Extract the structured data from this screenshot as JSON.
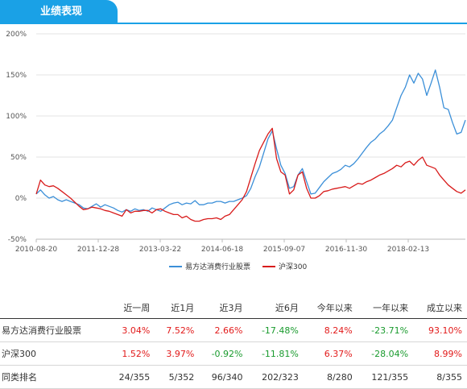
{
  "header": {
    "tab_label": "业绩表现"
  },
  "chart_data": {
    "type": "line",
    "x_ticks": [
      "2010-08-20",
      "2011-12-28",
      "2013-03-22",
      "2014-06-18",
      "2015-09-07",
      "2016-11-30",
      "2018-02-13"
    ],
    "y_ticks": [
      "200%",
      "150%",
      "100%",
      "50%",
      "0%",
      "-50%"
    ],
    "ylim": [
      -50,
      200
    ],
    "x_unit": "index",
    "xlim": [
      0,
      100
    ],
    "grid": true,
    "legend_position": "bottom",
    "series": [
      {
        "name": "易方达消费行业股票",
        "color": "#3b8fd8",
        "points": [
          [
            0,
            5
          ],
          [
            1,
            10
          ],
          [
            2,
            4
          ],
          [
            3,
            0
          ],
          [
            4,
            2
          ],
          [
            5,
            -2
          ],
          [
            6,
            -4
          ],
          [
            7,
            -2
          ],
          [
            8,
            -4
          ],
          [
            9,
            -6
          ],
          [
            10,
            -8
          ],
          [
            11,
            -12
          ],
          [
            12,
            -13
          ],
          [
            13,
            -10
          ],
          [
            14,
            -7
          ],
          [
            15,
            -11
          ],
          [
            16,
            -8
          ],
          [
            17,
            -10
          ],
          [
            18,
            -12
          ],
          [
            19,
            -15
          ],
          [
            20,
            -17
          ],
          [
            21,
            -14
          ],
          [
            22,
            -16
          ],
          [
            23,
            -13
          ],
          [
            24,
            -15
          ],
          [
            25,
            -14
          ],
          [
            26,
            -16
          ],
          [
            27,
            -12
          ],
          [
            28,
            -14
          ],
          [
            29,
            -16
          ],
          [
            30,
            -12
          ],
          [
            31,
            -8
          ],
          [
            32,
            -6
          ],
          [
            33,
            -5
          ],
          [
            34,
            -8
          ],
          [
            35,
            -6
          ],
          [
            36,
            -7
          ],
          [
            37,
            -3
          ],
          [
            38,
            -8
          ],
          [
            39,
            -8
          ],
          [
            40,
            -6
          ],
          [
            41,
            -6
          ],
          [
            42,
            -4
          ],
          [
            43,
            -4
          ],
          [
            44,
            -6
          ],
          [
            45,
            -4
          ],
          [
            46,
            -4
          ],
          [
            47,
            -2
          ],
          [
            48,
            0
          ],
          [
            49,
            3
          ],
          [
            50,
            12
          ],
          [
            51,
            26
          ],
          [
            52,
            38
          ],
          [
            53,
            55
          ],
          [
            54,
            72
          ],
          [
            55,
            82
          ],
          [
            56,
            60
          ],
          [
            57,
            40
          ],
          [
            58,
            30
          ],
          [
            59,
            12
          ],
          [
            60,
            14
          ],
          [
            61,
            28
          ],
          [
            62,
            36
          ],
          [
            63,
            20
          ],
          [
            64,
            5
          ],
          [
            65,
            6
          ],
          [
            66,
            13
          ],
          [
            67,
            20
          ],
          [
            68,
            25
          ],
          [
            69,
            30
          ],
          [
            70,
            32
          ],
          [
            71,
            35
          ],
          [
            72,
            40
          ],
          [
            73,
            38
          ],
          [
            74,
            42
          ],
          [
            75,
            48
          ],
          [
            76,
            55
          ],
          [
            77,
            62
          ],
          [
            78,
            68
          ],
          [
            79,
            72
          ],
          [
            80,
            78
          ],
          [
            81,
            82
          ],
          [
            82,
            88
          ],
          [
            83,
            95
          ],
          [
            84,
            110
          ],
          [
            85,
            125
          ],
          [
            86,
            135
          ],
          [
            87,
            150
          ],
          [
            88,
            140
          ],
          [
            89,
            152
          ],
          [
            90,
            145
          ],
          [
            91,
            125
          ],
          [
            92,
            140
          ],
          [
            93,
            156
          ],
          [
            94,
            135
          ],
          [
            95,
            110
          ],
          [
            96,
            108
          ],
          [
            97,
            92
          ],
          [
            98,
            78
          ],
          [
            99,
            80
          ],
          [
            100,
            95
          ]
        ]
      },
      {
        "name": "沪深300",
        "color": "#d81b1b",
        "points": [
          [
            0,
            5
          ],
          [
            1,
            22
          ],
          [
            2,
            16
          ],
          [
            3,
            14
          ],
          [
            4,
            15
          ],
          [
            5,
            12
          ],
          [
            6,
            8
          ],
          [
            7,
            4
          ],
          [
            8,
            0
          ],
          [
            9,
            -5
          ],
          [
            10,
            -10
          ],
          [
            11,
            -14
          ],
          [
            12,
            -13
          ],
          [
            13,
            -11
          ],
          [
            14,
            -12
          ],
          [
            15,
            -13
          ],
          [
            16,
            -15
          ],
          [
            17,
            -16
          ],
          [
            18,
            -18
          ],
          [
            19,
            -20
          ],
          [
            20,
            -22
          ],
          [
            21,
            -14
          ],
          [
            22,
            -18
          ],
          [
            23,
            -16
          ],
          [
            24,
            -16
          ],
          [
            25,
            -15
          ],
          [
            26,
            -15
          ],
          [
            27,
            -18
          ],
          [
            28,
            -14
          ],
          [
            29,
            -13
          ],
          [
            30,
            -16
          ],
          [
            31,
            -18
          ],
          [
            32,
            -20
          ],
          [
            33,
            -20
          ],
          [
            34,
            -24
          ],
          [
            35,
            -22
          ],
          [
            36,
            -26
          ],
          [
            37,
            -28
          ],
          [
            38,
            -28
          ],
          [
            39,
            -26
          ],
          [
            40,
            -25
          ],
          [
            41,
            -25
          ],
          [
            42,
            -24
          ],
          [
            43,
            -26
          ],
          [
            44,
            -22
          ],
          [
            45,
            -20
          ],
          [
            46,
            -14
          ],
          [
            47,
            -8
          ],
          [
            48,
            -2
          ],
          [
            49,
            8
          ],
          [
            50,
            25
          ],
          [
            51,
            42
          ],
          [
            52,
            58
          ],
          [
            53,
            68
          ],
          [
            54,
            78
          ],
          [
            55,
            85
          ],
          [
            56,
            48
          ],
          [
            57,
            32
          ],
          [
            58,
            28
          ],
          [
            59,
            5
          ],
          [
            60,
            10
          ],
          [
            61,
            28
          ],
          [
            62,
            32
          ],
          [
            63,
            12
          ],
          [
            64,
            0
          ],
          [
            65,
            0
          ],
          [
            66,
            3
          ],
          [
            67,
            8
          ],
          [
            68,
            9
          ],
          [
            69,
            11
          ],
          [
            70,
            12
          ],
          [
            71,
            13
          ],
          [
            72,
            14
          ],
          [
            73,
            12
          ],
          [
            74,
            15
          ],
          [
            75,
            18
          ],
          [
            76,
            17
          ],
          [
            77,
            20
          ],
          [
            78,
            22
          ],
          [
            79,
            25
          ],
          [
            80,
            28
          ],
          [
            81,
            30
          ],
          [
            82,
            33
          ],
          [
            83,
            36
          ],
          [
            84,
            40
          ],
          [
            85,
            38
          ],
          [
            86,
            43
          ],
          [
            87,
            45
          ],
          [
            88,
            40
          ],
          [
            89,
            46
          ],
          [
            90,
            50
          ],
          [
            91,
            40
          ],
          [
            92,
            38
          ],
          [
            93,
            36
          ],
          [
            94,
            28
          ],
          [
            95,
            22
          ],
          [
            96,
            16
          ],
          [
            97,
            12
          ],
          [
            98,
            8
          ],
          [
            99,
            6
          ],
          [
            100,
            10
          ]
        ]
      }
    ]
  },
  "table": {
    "headers": [
      "",
      "近一周",
      "近1月",
      "近3月",
      "近6月",
      "今年以来",
      "一年以来",
      "成立以来"
    ],
    "rows": [
      {
        "name": "易方达消费行业股票",
        "cells": [
          {
            "v": "3.04%",
            "s": "pos"
          },
          {
            "v": "7.52%",
            "s": "pos"
          },
          {
            "v": "2.66%",
            "s": "pos"
          },
          {
            "v": "-17.48%",
            "s": "neg"
          },
          {
            "v": "8.24%",
            "s": "pos"
          },
          {
            "v": "-23.71%",
            "s": "neg"
          },
          {
            "v": "93.10%",
            "s": "pos"
          }
        ]
      },
      {
        "name": "沪深300",
        "cells": [
          {
            "v": "1.52%",
            "s": "pos"
          },
          {
            "v": "3.97%",
            "s": "pos"
          },
          {
            "v": "-0.92%",
            "s": "neg"
          },
          {
            "v": "-11.81%",
            "s": "neg"
          },
          {
            "v": "6.37%",
            "s": "pos"
          },
          {
            "v": "-28.04%",
            "s": "neg"
          },
          {
            "v": "8.99%",
            "s": "pos"
          }
        ]
      },
      {
        "name": "同类排名",
        "cells": [
          {
            "v": "24/355",
            "s": ""
          },
          {
            "v": "5/352",
            "s": ""
          },
          {
            "v": "96/340",
            "s": ""
          },
          {
            "v": "202/323",
            "s": ""
          },
          {
            "v": "8/280",
            "s": ""
          },
          {
            "v": "121/355",
            "s": ""
          },
          {
            "v": "8/355",
            "s": ""
          }
        ]
      }
    ]
  }
}
